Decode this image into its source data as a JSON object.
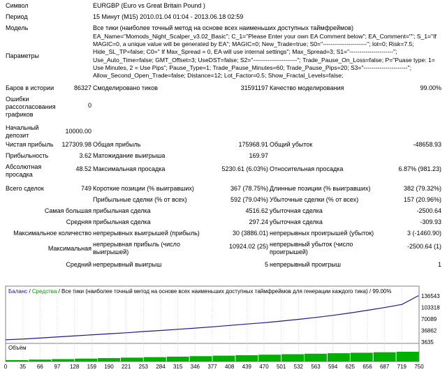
{
  "report": {
    "symbol_label": "Символ",
    "symbol_value": "EURGBP (Euro vs Great Britain Pound )",
    "period_label": "Период",
    "period_value": "15 Минут (M15) 2010.01.04 01:04 - 2013.06.18 02:59",
    "model_label": "Модель",
    "model_value": "Все тики (наиболее точный метод на основе всех наименьших доступных таймфреймов)",
    "params_label": "Параметры",
    "params_value": "EA_Name=\"Momods_Night_Scalper_v3.02_Basic\"; C_1=\"Please Enter your own EA Comment below\"; EA_Comment=\"\"; S_1=\"If MAGIC=0, a unique value will be generated by EA\"; MAGIC=0; New_Trade=true; S0=\"----------------------\"; lot=0; Risk=7.5; Hide_SL_TP=false; C0=\" If Max_Spread = 0, EA will use internal settings\"; Max_Spread=3; S1=\"----------------------\"; Use_Auto_Time=false; GMT_Offset=3; UseDST=false; S2=\"----------------------\"; Trade_Pause_On_Loss=false; P=\"Puase type: 1= Use Minutes, 2 = Use Pips\"; Pause_Type=1; Trade_Pause_Minutes=60; Trade_Pause_Pips=20; S3=\"----------------------\"; Allow_Second_Open_Trade=false; Distance=12; Lot_Factor=0.5; Show_Fractal_Levels=false;",
    "bars_label": "Баров в истории",
    "bars_value": "86327",
    "ticks_label": "Смоделировано тиков",
    "ticks_value": "31591197",
    "quality_label": "Качество моделирования",
    "quality_value": "99.00%",
    "errors_label": "Ошибки рассогласования графиков",
    "errors_value": "0",
    "deposit_label": "Начальный депозит",
    "deposit_value": "10000.00",
    "net_label": "Чистая прибыль",
    "net_value": "127309.98",
    "gross_profit_label": "Общая прибыль",
    "gross_profit_value": "175968.91",
    "gross_loss_label": "Общий убыток",
    "gross_loss_value": "-48658.93",
    "pf_label": "Прибыльность",
    "pf_value": "3.62",
    "expect_label": "Матожидание выигрыша",
    "expect_value": "169.97",
    "abs_dd_label": "Абсолютная просадка",
    "abs_dd_value": "48.52",
    "max_dd_label": "Максимальная просадка",
    "max_dd_value": "5230.61 (6.03%)",
    "rel_dd_label": "Относительная просадка",
    "rel_dd_value": "6.87% (981.23)",
    "total_label": "Всего сделок",
    "total_value": "749",
    "short_label": "Короткие позиции (% выигравших)",
    "short_value": "367 (78.75%)",
    "long_label": "Длинные позиции (% выигравших)",
    "long_value": "382 (79.32%)",
    "win_label": "Прибыльные сделки (% от всех)",
    "win_value": "592 (79.04%)",
    "loss_label": "Убыточные сделки (% от всех)",
    "loss_value": "157 (20.96%)",
    "largest_label": "Самая большая",
    "largest_win_label": "прибыльная сделка",
    "largest_win_value": "4516.62",
    "largest_loss_label": "убыточная сделка",
    "largest_loss_value": "-2500.64",
    "avg_label": "Средняя",
    "avg_win_label": "прибыльная сделка",
    "avg_win_value": "297.24",
    "avg_loss_label": "убыточная сделка",
    "avg_loss_value": "-309.93",
    "max_count_label": "Максимальное количество",
    "cons_wins_label": "непрерывных выигрышей (прибыль)",
    "cons_wins_value": "30 (3886.01)",
    "cons_losses_label": "непрерывных проигрышей (убыток)",
    "cons_losses_value": "3 (-1460.90)",
    "maximal_label": "Максимальная",
    "cons_profit_label": "непрерывная прибыль (число выигрышей)",
    "cons_profit_value": "10924.02 (25)",
    "cons_loss_label": "непрерывный убыток (число проигрышей)",
    "cons_loss_value": "-2500.64 (1)",
    "avg2_label": "Средний",
    "avg_cons_wins_label": "непрерывный выигрыш",
    "avg_cons_wins_value": "5",
    "avg_cons_losses_label": "непрерывный проигрыш",
    "avg_cons_losses_value": "1"
  },
  "chart_header": {
    "balance": "Баланс",
    "sep1": " / ",
    "equity": "Средства",
    "rest": " / Все тики (наиболее точный метод на основе всех наименьших доступных таймфреймов для генерации каждого тика) / 99.00%"
  },
  "volume_label": "Объём",
  "colors": {
    "balance": "#1a1a8c",
    "equity": "#00a000",
    "volume": "#00b000"
  },
  "chart_data": [
    {
      "type": "line",
      "series": [
        {
          "name": "Баланс",
          "x": [
            0,
            35,
            66,
            97,
            128,
            159,
            190,
            221,
            253,
            284,
            315,
            346,
            377,
            408,
            439,
            470,
            501,
            532,
            563,
            594,
            625,
            656,
            687,
            719,
            749
          ],
          "values": [
            10000,
            12500,
            15500,
            18500,
            21500,
            24500,
            27500,
            30500,
            34000,
            37000,
            40500,
            44000,
            47500,
            51500,
            55500,
            59500,
            64000,
            69000,
            74500,
            80500,
            87500,
            95000,
            103000,
            112000,
            137309.98
          ]
        }
      ],
      "yticks": [
        "136543",
        "103318",
        "70089",
        "36862",
        "3635"
      ],
      "ylim": [
        3635,
        136543
      ],
      "xticks": [
        "0",
        "35",
        "66",
        "97",
        "128",
        "159",
        "190",
        "221",
        "253",
        "284",
        "315",
        "346",
        "377",
        "408",
        "439",
        "470",
        "501",
        "532",
        "563",
        "594",
        "625",
        "656",
        "687",
        "719",
        "750"
      ],
      "xlim": [
        0,
        750
      ],
      "grid": true
    },
    {
      "type": "bar",
      "title": "Объём",
      "values_relative": [
        0.15,
        0.2,
        0.25,
        0.3,
        0.35,
        0.4,
        0.45,
        0.5,
        0.55,
        0.6,
        0.65,
        0.7,
        0.75,
        0.8,
        0.85,
        0.9,
        0.95,
        1.0
      ]
    }
  ]
}
